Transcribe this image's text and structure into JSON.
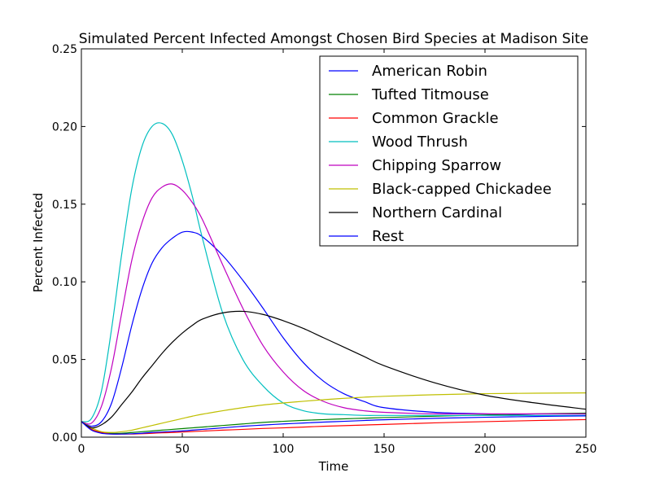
{
  "chart_data": {
    "type": "line",
    "title": "Simulated Percent Infected Amongst Chosen Bird Species at Madison Site",
    "xlabel": "Time",
    "ylabel": "Percent Infected",
    "xlim": [
      0,
      250
    ],
    "ylim": [
      0,
      0.25
    ],
    "xticks": [
      0,
      50,
      100,
      150,
      200,
      250
    ],
    "yticks": [
      0.0,
      0.05,
      0.1,
      0.15,
      0.2,
      0.25
    ],
    "xtick_labels": [
      "0",
      "50",
      "100",
      "150",
      "200",
      "250"
    ],
    "ytick_labels": [
      "0.00",
      "0.05",
      "0.10",
      "0.15",
      "0.20",
      "0.25"
    ],
    "grid": false,
    "legend_position": "top-right",
    "x": [
      0,
      5,
      10,
      15,
      20,
      25,
      30,
      35,
      40,
      45,
      50,
      55,
      60,
      70,
      80,
      90,
      100,
      110,
      120,
      130,
      140,
      150,
      175,
      200,
      225,
      250
    ],
    "series": [
      {
        "name": "American Robin",
        "color": "#0000ff",
        "values": [
          0.01,
          0.007,
          0.01,
          0.022,
          0.045,
          0.072,
          0.095,
          0.112,
          0.122,
          0.128,
          0.132,
          0.132,
          0.129,
          0.117,
          0.101,
          0.083,
          0.064,
          0.048,
          0.036,
          0.028,
          0.023,
          0.019,
          0.016,
          0.015,
          0.014,
          0.014
        ]
      },
      {
        "name": "Tufted Titmouse",
        "color": "#008000",
        "values": [
          0.01,
          0.005,
          0.003,
          0.0025,
          0.0025,
          0.003,
          0.0035,
          0.004,
          0.0045,
          0.005,
          0.0055,
          0.006,
          0.0065,
          0.0075,
          0.0085,
          0.0095,
          0.0102,
          0.0108,
          0.0113,
          0.0118,
          0.0122,
          0.0126,
          0.0135,
          0.0143,
          0.015,
          0.0155
        ]
      },
      {
        "name": "Common Grackle",
        "color": "#ff0000",
        "values": [
          0.01,
          0.005,
          0.003,
          0.002,
          0.002,
          0.002,
          0.0022,
          0.0025,
          0.0028,
          0.003,
          0.0033,
          0.0036,
          0.0039,
          0.0045,
          0.005,
          0.0056,
          0.006,
          0.0065,
          0.007,
          0.0074,
          0.0078,
          0.0082,
          0.0092,
          0.01,
          0.0107,
          0.0113
        ]
      },
      {
        "name": "Wood Thrush",
        "color": "#00bfbf",
        "values": [
          0.01,
          0.012,
          0.03,
          0.07,
          0.118,
          0.16,
          0.187,
          0.2,
          0.202,
          0.195,
          0.178,
          0.155,
          0.128,
          0.08,
          0.05,
          0.033,
          0.022,
          0.017,
          0.015,
          0.0145,
          0.014,
          0.014,
          0.014,
          0.014,
          0.014,
          0.014
        ]
      },
      {
        "name": "Chipping Sparrow",
        "color": "#bf00bf",
        "values": [
          0.01,
          0.009,
          0.02,
          0.045,
          0.08,
          0.114,
          0.138,
          0.154,
          0.161,
          0.163,
          0.159,
          0.151,
          0.14,
          0.111,
          0.083,
          0.059,
          0.042,
          0.03,
          0.023,
          0.019,
          0.017,
          0.016,
          0.015,
          0.015,
          0.015,
          0.015
        ]
      },
      {
        "name": "Black-capped Chickadee",
        "color": "#bfbf00",
        "values": [
          0.01,
          0.006,
          0.0035,
          0.003,
          0.0035,
          0.0045,
          0.006,
          0.0075,
          0.009,
          0.0105,
          0.012,
          0.0135,
          0.0148,
          0.017,
          0.019,
          0.0207,
          0.022,
          0.0231,
          0.0241,
          0.025,
          0.0257,
          0.0263,
          0.0273,
          0.028,
          0.0283,
          0.0285
        ]
      },
      {
        "name": "Northern Cardinal",
        "color": "#000000",
        "values": [
          0.01,
          0.006,
          0.008,
          0.013,
          0.021,
          0.029,
          0.038,
          0.046,
          0.054,
          0.061,
          0.067,
          0.072,
          0.076,
          0.08,
          0.081,
          0.079,
          0.075,
          0.07,
          0.064,
          0.058,
          0.052,
          0.046,
          0.035,
          0.027,
          0.022,
          0.018
        ]
      },
      {
        "name": "Rest",
        "color": "#0000ff",
        "values": [
          0.01,
          0.0045,
          0.0025,
          0.002,
          0.002,
          0.0022,
          0.0025,
          0.003,
          0.0033,
          0.0037,
          0.004,
          0.0045,
          0.005,
          0.006,
          0.007,
          0.0078,
          0.0085,
          0.0091,
          0.0097,
          0.0102,
          0.0107,
          0.0112,
          0.0121,
          0.0128,
          0.0133,
          0.0137
        ]
      }
    ]
  }
}
